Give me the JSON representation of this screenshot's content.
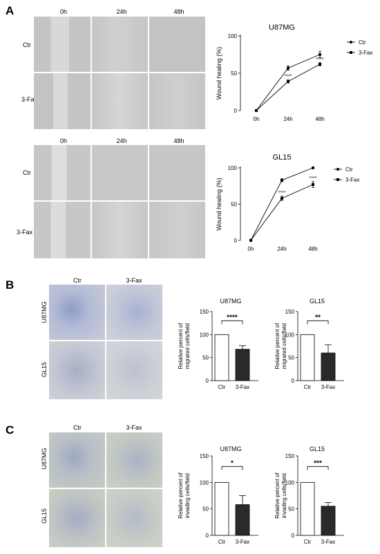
{
  "panelA": {
    "letter": "A",
    "time_labels": [
      "0h",
      "24h",
      "48h"
    ],
    "rows_top": [
      "Ctr",
      "3-Fax"
    ],
    "rows_bottom": [
      "Ctr",
      "3-Fax"
    ]
  },
  "panelB": {
    "letter": "B",
    "cols": [
      "Ctr",
      "3-Fax"
    ],
    "rows": [
      "U87MG",
      "GL15"
    ]
  },
  "panelC": {
    "letter": "C",
    "cols": [
      "Ctr",
      "3-Fax"
    ],
    "rows": [
      "U87MG",
      "GL15"
    ]
  },
  "chart_data": [
    {
      "id": "a1",
      "type": "line",
      "title": "U87MG",
      "ylabel": "Wound healing (%)",
      "categories": [
        "0h",
        "24h",
        "48h"
      ],
      "ylim": [
        0,
        100
      ],
      "yticks": [
        0,
        50,
        100
      ],
      "series": [
        {
          "name": "Ctr",
          "values": [
            0,
            57,
            75
          ],
          "errors": [
            0,
            3,
            4
          ]
        },
        {
          "name": "3-Fax",
          "values": [
            0,
            39,
            62
          ],
          "errors": [
            0,
            2,
            2
          ]
        }
      ],
      "annotations": [
        {
          "x": "24h",
          "text": "****"
        },
        {
          "x": "48h",
          "text": "****"
        }
      ],
      "legend": "top-right"
    },
    {
      "id": "a2",
      "type": "line",
      "title": "GL15",
      "ylabel": "Wound healing (%)",
      "categories": [
        "0h",
        "24h",
        "48h"
      ],
      "ylim": [
        0,
        100
      ],
      "yticks": [
        0,
        50,
        100
      ],
      "series": [
        {
          "name": "Ctr",
          "values": [
            0,
            83,
            100
          ],
          "errors": [
            0,
            2,
            1
          ]
        },
        {
          "name": "3-Fax",
          "values": [
            0,
            58,
            77
          ],
          "errors": [
            0,
            3,
            4
          ]
        }
      ],
      "annotations": [
        {
          "x": "24h",
          "text": "****"
        },
        {
          "x": "48h",
          "text": "****"
        }
      ],
      "legend": "top-right"
    },
    {
      "id": "b1",
      "type": "bar",
      "title": "U87MG",
      "ylabel": [
        "Relative percent of",
        "migrated cells/field"
      ],
      "categories": [
        "Ctr",
        "3-Fax"
      ],
      "values": [
        100,
        68
      ],
      "errors": [
        0,
        8
      ],
      "ylim": [
        0,
        150
      ],
      "yticks": [
        0,
        50,
        100,
        150
      ],
      "significance": "****"
    },
    {
      "id": "b2",
      "type": "bar",
      "title": "GL15",
      "ylabel": [
        "Relative percent of",
        "migrated cells/field"
      ],
      "categories": [
        "Ctr",
        "3-Fax"
      ],
      "values": [
        100,
        60
      ],
      "errors": [
        0,
        18
      ],
      "ylim": [
        0,
        150
      ],
      "yticks": [
        0,
        50,
        100,
        150
      ],
      "significance": "**"
    },
    {
      "id": "c1",
      "type": "bar",
      "title": "U87MG",
      "ylabel": [
        "Relative percent of",
        "invading cells/field"
      ],
      "categories": [
        "Ctr",
        "3-Fax"
      ],
      "values": [
        100,
        58
      ],
      "errors": [
        0,
        17
      ],
      "ylim": [
        0,
        150
      ],
      "yticks": [
        0,
        50,
        100,
        150
      ],
      "significance": "*"
    },
    {
      "id": "c2",
      "type": "bar",
      "title": "GL15",
      "ylabel": [
        "Relative percent of",
        "invading cells/field"
      ],
      "categories": [
        "Ctr",
        "3-Fax"
      ],
      "values": [
        100,
        55
      ],
      "errors": [
        0,
        7
      ],
      "ylim": [
        0,
        150
      ],
      "yticks": [
        0,
        50,
        100,
        150
      ],
      "significance": "***"
    }
  ]
}
